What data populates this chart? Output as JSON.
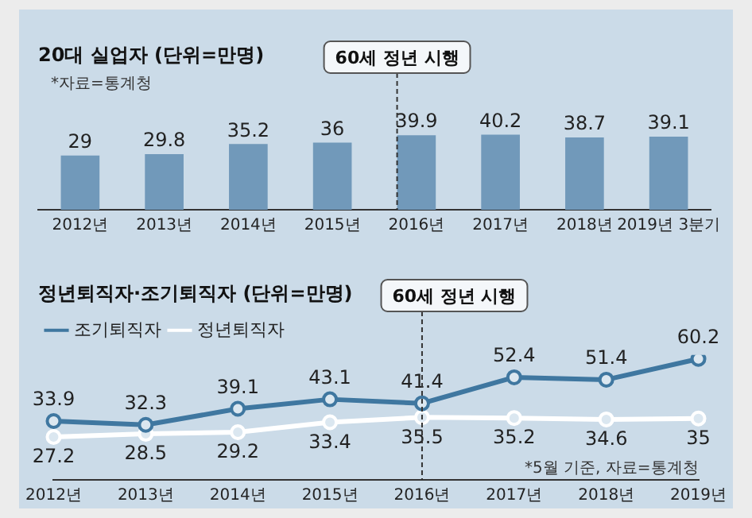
{
  "chart_data": [
    {
      "type": "bar",
      "title": "20대 실업자 (단위=만명)",
      "annotations": [
        "*자료=통계청"
      ],
      "categories": [
        "2012년",
        "2013년",
        "2014년",
        "2015년",
        "2016년",
        "2017년",
        "2018년",
        "2019년 3분기"
      ],
      "values": [
        29,
        29.8,
        35.2,
        36,
        39.9,
        40.2,
        38.7,
        39.1
      ],
      "color": "#7199ba",
      "data_labels": true,
      "grid": false,
      "legend": false,
      "tick_labels": "x",
      "ref_lines": [
        {
          "axis": "x",
          "value": "2016년",
          "label": "60세 정년 시행"
        }
      ]
    },
    {
      "type": "line",
      "title": "정년퇴직자·조기퇴직자 (단위=만명)",
      "annotations": [
        "*5월 기준, 자료=통계청"
      ],
      "categories": [
        "2012년",
        "2013년",
        "2014년",
        "2015년",
        "2016년",
        "2017년",
        "2018년",
        "2019년"
      ],
      "series": [
        {
          "name": "조기퇴직자",
          "color": "#3f77a0",
          "values": [
            33.9,
            32.3,
            39.1,
            43.1,
            41.4,
            52.4,
            51.4,
            60.2
          ]
        },
        {
          "name": "정년퇴직자",
          "color": "#ffffff",
          "values": [
            27.2,
            28.5,
            29.2,
            33.4,
            35.5,
            35.2,
            34.6,
            35
          ]
        }
      ],
      "data_labels": true,
      "grid": false,
      "legend": "top left",
      "marker": "circle",
      "line_style": "solid",
      "tick_labels": "x",
      "ref_lines": [
        {
          "axis": "x",
          "value": "2016년",
          "label": "60세 정년 시행"
        }
      ]
    }
  ]
}
